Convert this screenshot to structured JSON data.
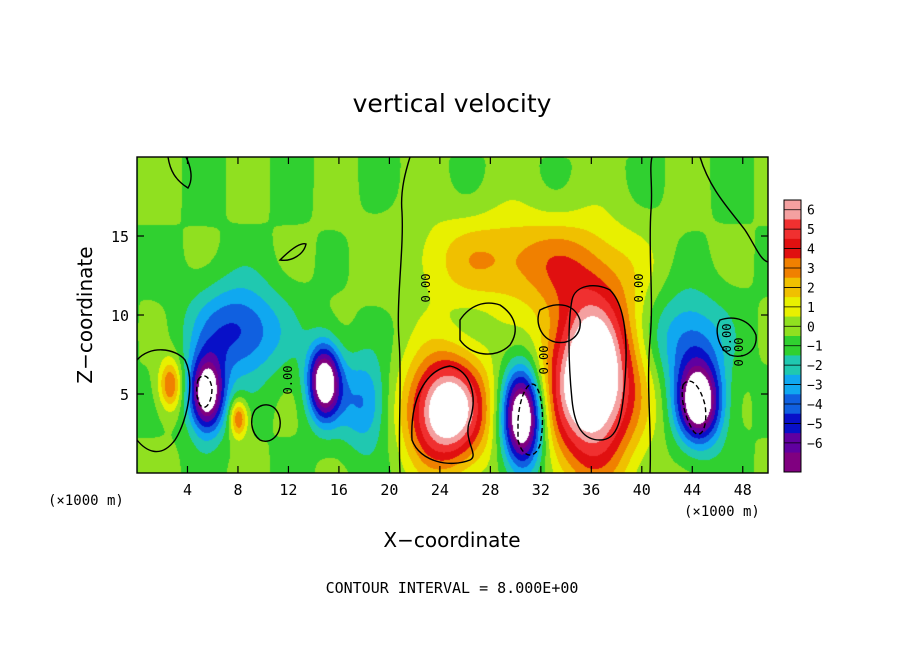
{
  "chart_data": {
    "type": "heatmap",
    "title": "vertical velocity",
    "xlabel": "X−coordinate",
    "ylabel": "Z−coordinate",
    "x_unit_left": "(×1000 m)",
    "x_unit_right": "(×1000 m)",
    "xlim": [
      0,
      50
    ],
    "ylim": [
      0,
      20
    ],
    "x_ticks": [
      "4",
      "8",
      "12",
      "16",
      "20",
      "24",
      "28",
      "32",
      "36",
      "40",
      "44",
      "48"
    ],
    "y_ticks": [
      "5",
      "10",
      "15"
    ],
    "colorbar": {
      "levels": [
        "6",
        "5",
        "4",
        "3",
        "2",
        "1",
        "0",
        "−1",
        "−2",
        "−3",
        "−4",
        "−5",
        "−6"
      ],
      "colors": [
        "#f4a0a0",
        "#f03030",
        "#e01010",
        "#f08000",
        "#f0c000",
        "#e8f000",
        "#90e020",
        "#30d030",
        "#20c8b0",
        "#10a8f0",
        "#1060e0",
        "#0810c8",
        "#6000a0",
        "#800080"
      ]
    },
    "background_color": "#5ad03a",
    "contour_labels": [
      "0.00",
      "0.00",
      "0.00",
      "0.00",
      "0.00",
      "0.00"
    ],
    "features": [
      {
        "kind": "updraft",
        "x": 24.5,
        "z": 4.0,
        "rx": 3.2,
        "rz": 3.6,
        "peak": 8
      },
      {
        "kind": "updraft",
        "x": 36.0,
        "z": 6.0,
        "rx": 3.6,
        "rz": 5.8,
        "peak": 9
      },
      {
        "kind": "updraft",
        "x": 2.6,
        "z": 5.6,
        "rx": 0.9,
        "rz": 1.6,
        "peak": 4
      },
      {
        "kind": "updraft",
        "x": 8.0,
        "z": 3.5,
        "rx": 0.7,
        "rz": 1.2,
        "peak": 4
      },
      {
        "kind": "downdraft",
        "x": 30.5,
        "z": 3.5,
        "rx": 1.6,
        "rz": 3.2,
        "peak": -9
      },
      {
        "kind": "downdraft",
        "x": 5.5,
        "z": 5.0,
        "rx": 1.4,
        "rz": 2.4,
        "peak": -8
      },
      {
        "kind": "downdraft",
        "x": 14.8,
        "z": 5.8,
        "rx": 1.3,
        "rz": 2.4,
        "peak": -8
      },
      {
        "kind": "downdraft",
        "x": 44.5,
        "z": 4.5,
        "rx": 1.8,
        "rz": 2.6,
        "peak": -8
      },
      {
        "kind": "downdraft",
        "x": 8.0,
        "z": 9.0,
        "rx": 3.5,
        "rz": 3.0,
        "peak": -4
      },
      {
        "kind": "downdraft",
        "x": 18.0,
        "z": 4.5,
        "rx": 2.0,
        "rz": 3.0,
        "peak": -3
      },
      {
        "kind": "downdraft",
        "x": 43.5,
        "z": 8.5,
        "rx": 3.0,
        "rz": 3.0,
        "peak": -3
      },
      {
        "kind": "updraft",
        "x": 30.0,
        "z": 13.5,
        "rx": 8.0,
        "rz": 3.0,
        "peak": 3
      }
    ]
  },
  "footer": {
    "contour_interval": "CONTOUR INTERVAL = 8.000E+00"
  }
}
